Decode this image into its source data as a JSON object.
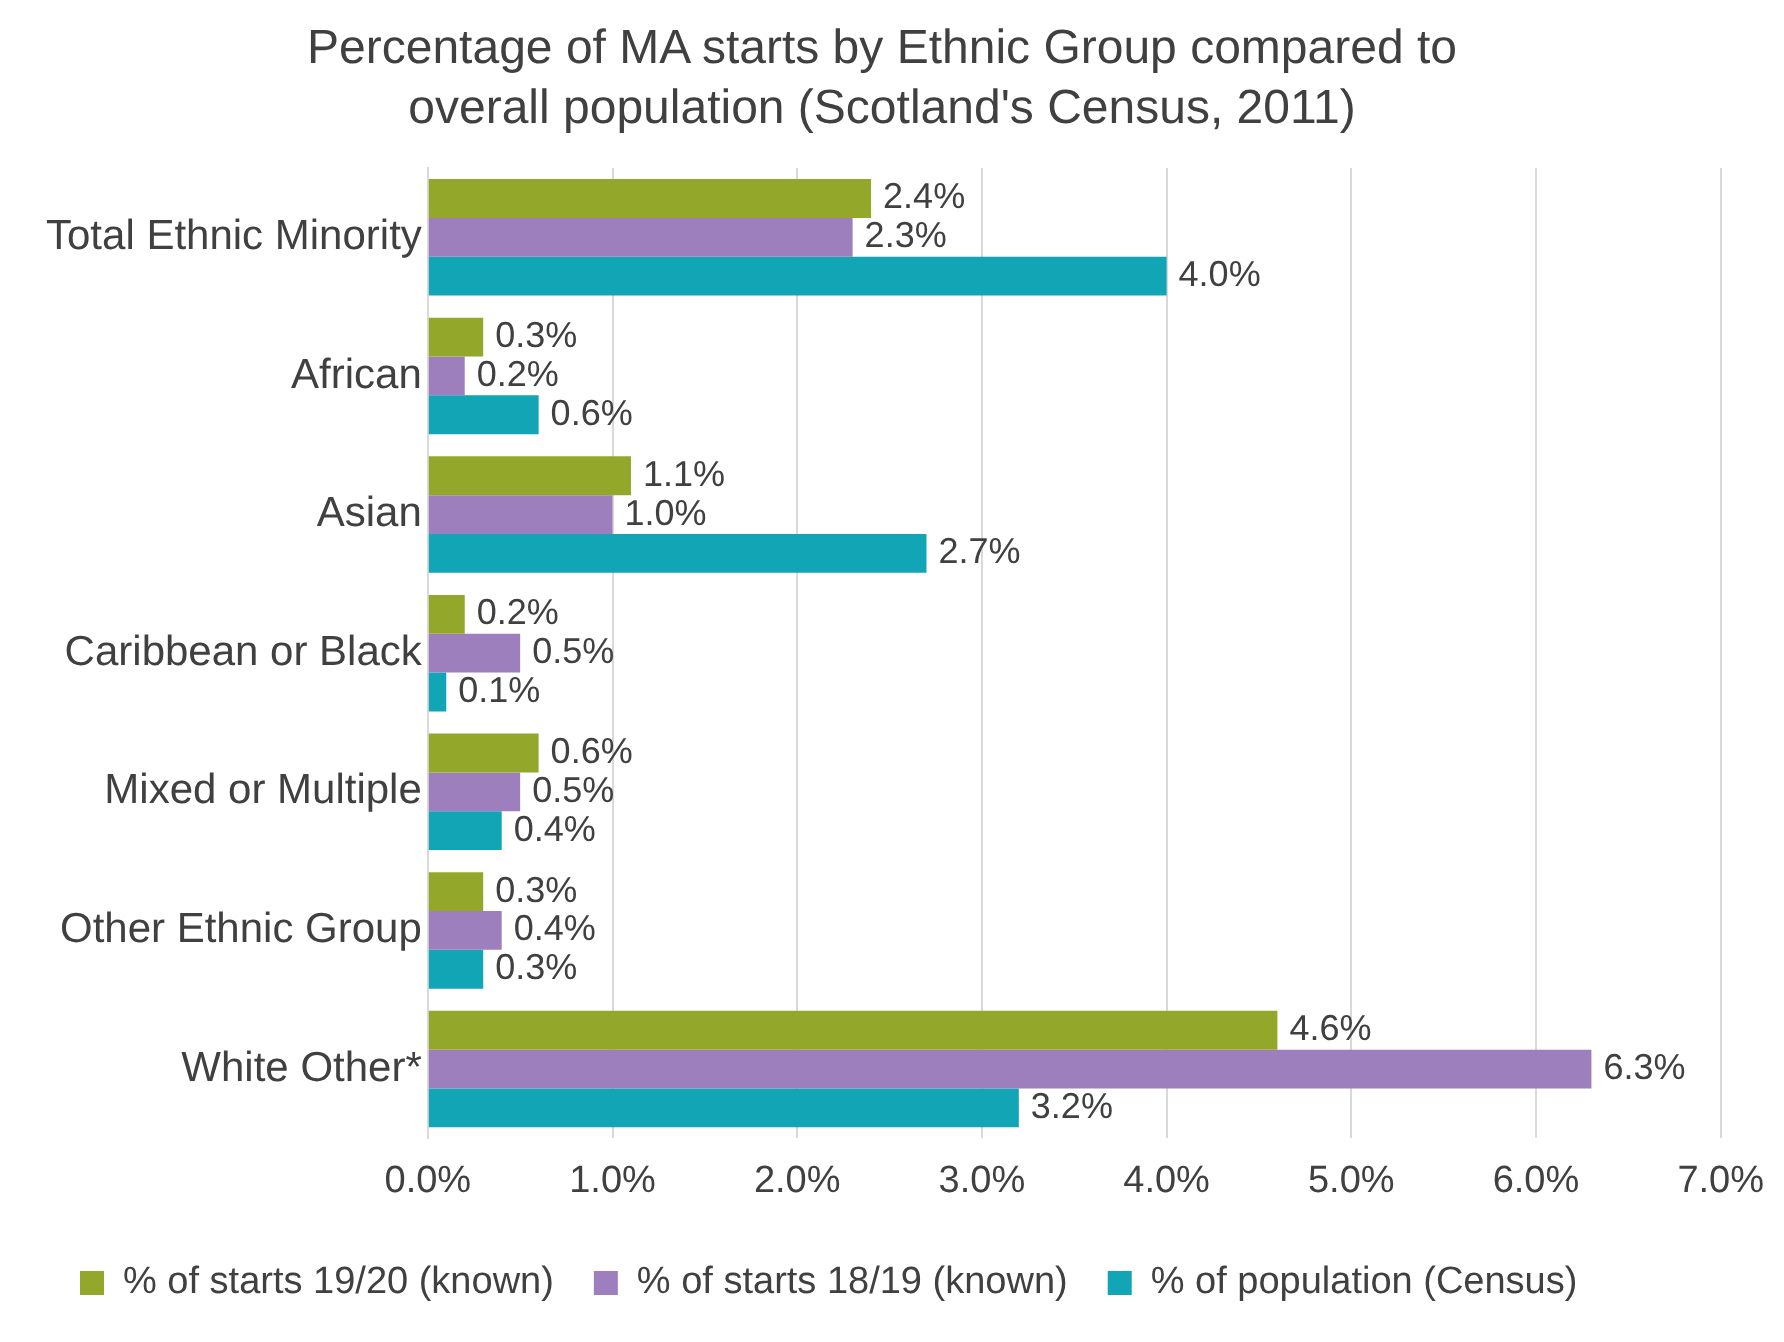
{
  "chart_data": {
    "type": "bar",
    "orientation": "horizontal",
    "title": "Percentage of MA starts by Ethnic Group compared to overall population (Scotland's Census, 2011)",
    "categories": [
      "Total Ethnic Minority",
      "African",
      "Asian",
      "Caribbean or Black",
      "Mixed or Multiple",
      "Other Ethnic Group",
      "White Other*"
    ],
    "series": [
      {
        "name": "% of starts 19/20 (known)",
        "color": "#93a82a",
        "values": [
          2.4,
          0.3,
          1.1,
          0.2,
          0.6,
          0.3,
          4.6
        ],
        "value_labels": [
          "2.4%",
          "0.3%",
          "1.1%",
          "0.2%",
          "0.6%",
          "0.3%",
          "4.6%"
        ]
      },
      {
        "name": "% of starts 18/19 (known)",
        "color": "#9e7fbd",
        "values": [
          2.3,
          0.2,
          1.0,
          0.5,
          0.5,
          0.4,
          6.3
        ],
        "value_labels": [
          "2.3%",
          "0.2%",
          "1.0%",
          "0.5%",
          "0.5%",
          "0.4%",
          "6.3%"
        ]
      },
      {
        "name": "% of population (Census)",
        "color": "#12a5b5",
        "values": [
          4.0,
          0.6,
          2.7,
          0.1,
          0.4,
          0.3,
          3.2
        ],
        "value_labels": [
          "4.0%",
          "0.6%",
          "2.7%",
          "0.1%",
          "0.4%",
          "0.3%",
          "3.2%"
        ]
      }
    ],
    "xlim": [
      0,
      7
    ],
    "xticks": [
      {
        "value": 0,
        "label": "0.0%"
      },
      {
        "value": 1,
        "label": "1.0%"
      },
      {
        "value": 2,
        "label": "2.0%"
      },
      {
        "value": 3,
        "label": "3.0%"
      },
      {
        "value": 4,
        "label": "4.0%"
      },
      {
        "value": 5,
        "label": "5.0%"
      },
      {
        "value": 6,
        "label": "6.0%"
      },
      {
        "value": 7,
        "label": "7.0%"
      }
    ],
    "grid": "x",
    "legend": "bottom"
  }
}
